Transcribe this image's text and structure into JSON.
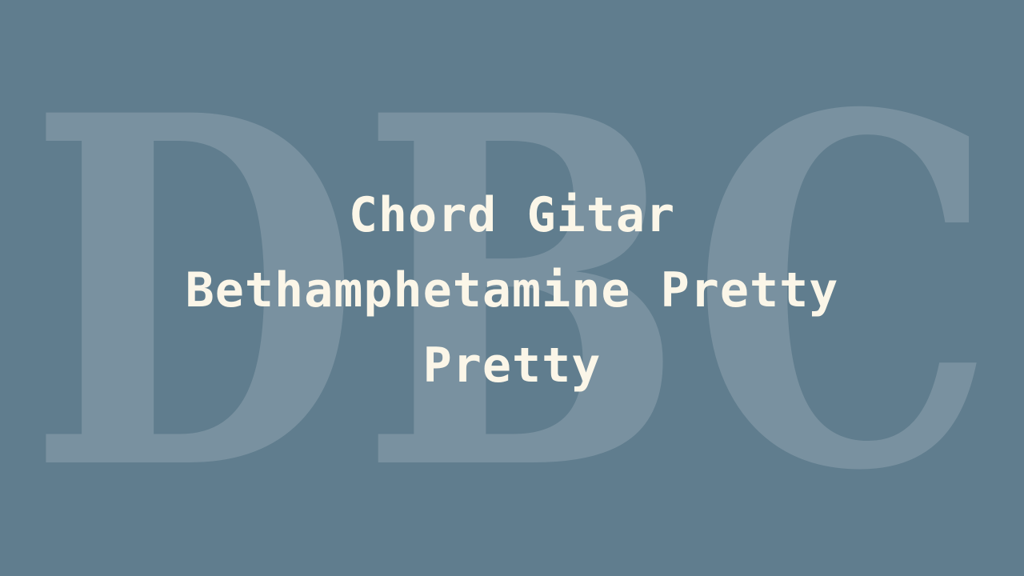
{
  "background_color": "#607d8e",
  "watermark": {
    "text": "DBC"
  },
  "post": {
    "title": "Chord Gitar Bethamphetamine Pretty Pretty"
  }
}
